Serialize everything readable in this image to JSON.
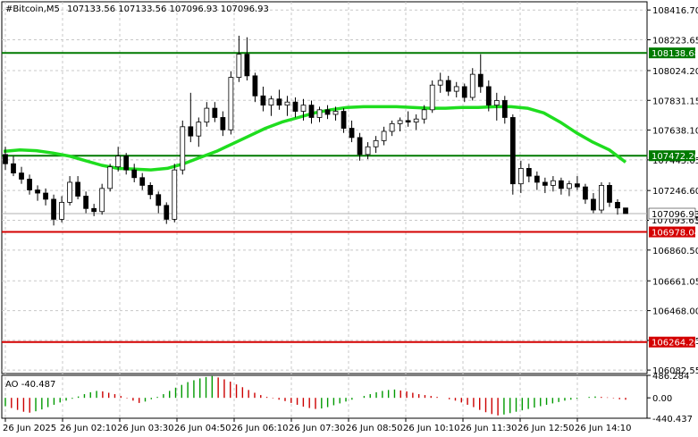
{
  "header": {
    "symbol": "#Bitcoin,M5",
    "ohlc": "107133.56 107133.56 107096.93 107096.93"
  },
  "colors": {
    "background": "#ffffff",
    "grid": "#c8c8c8",
    "candle": "#000000",
    "ma": "#1fdd1f",
    "resistance": "#007a00",
    "support": "#d40000",
    "ao_up": "#009900",
    "ao_down": "#cc0000"
  },
  "chart_data": {
    "type": "candlestick",
    "price_axis": {
      "ylim": [
        106060,
        108470
      ],
      "ticks": [
        "108416.70",
        "108223.65",
        "108024.20",
        "107831.15",
        "107638.10",
        "107445.05",
        "107246.60",
        "107053.55",
        "106860.50",
        "106661.05",
        "106468.00",
        "106274.95",
        "106082.55"
      ]
    },
    "time_axis": {
      "labels": [
        "26 Jun 2025",
        "26 Jun 02:10",
        "26 Jun 03:30",
        "26 Jun 04:50",
        "26 Jun 06:10",
        "26 Jun 07:30",
        "26 Jun 08:50",
        "26 Jun 10:10",
        "26 Jun 11:30",
        "26 Jun 12:50",
        "26 Jun 14:10"
      ]
    },
    "levels": [
      {
        "name": "resistance-upper",
        "value": 108138.68,
        "label": "108138.68",
        "color": "#007a00"
      },
      {
        "name": "resistance-lower",
        "value": 107472.2,
        "label": "107472.20",
        "color": "#007a00"
      },
      {
        "name": "support-upper",
        "value": 106978.04,
        "label": "106978.04",
        "color": "#d40000"
      },
      {
        "name": "support-lower",
        "value": 106264.26,
        "label": "106264.26",
        "color": "#d40000"
      }
    ],
    "current_price": {
      "value": 107096.93,
      "label": "107096.93"
    },
    "hidden_price": {
      "label": "107093.63"
    },
    "moving_average": [
      107500,
      107510,
      107505,
      107490,
      107470,
      107440,
      107410,
      107390,
      107385,
      107380,
      107390,
      107420,
      107460,
      107500,
      107550,
      107600,
      107650,
      107690,
      107720,
      107750,
      107770,
      107785,
      107790,
      107790,
      107790,
      107785,
      107780,
      107780,
      107785,
      107785,
      107790,
      107790,
      107780,
      107750,
      107690,
      107620,
      107560,
      107510,
      107430
    ],
    "candles": [
      {
        "o": 107480,
        "h": 107530,
        "l": 107380,
        "c": 107420
      },
      {
        "o": 107420,
        "h": 107470,
        "l": 107340,
        "c": 107360
      },
      {
        "o": 107360,
        "h": 107400,
        "l": 107290,
        "c": 107320
      },
      {
        "o": 107320,
        "h": 107350,
        "l": 107220,
        "c": 107250
      },
      {
        "o": 107250,
        "h": 107280,
        "l": 107180,
        "c": 107230
      },
      {
        "o": 107230,
        "h": 107260,
        "l": 107150,
        "c": 107190
      },
      {
        "o": 107190,
        "h": 107220,
        "l": 107020,
        "c": 107060
      },
      {
        "o": 107060,
        "h": 107210,
        "l": 107040,
        "c": 107170
      },
      {
        "o": 107170,
        "h": 107340,
        "l": 107150,
        "c": 107300
      },
      {
        "o": 107300,
        "h": 107340,
        "l": 107190,
        "c": 107210
      },
      {
        "o": 107210,
        "h": 107240,
        "l": 107100,
        "c": 107130
      },
      {
        "o": 107130,
        "h": 107160,
        "l": 107080,
        "c": 107110
      },
      {
        "o": 107110,
        "h": 107290,
        "l": 107090,
        "c": 107260
      },
      {
        "o": 107260,
        "h": 107420,
        "l": 107240,
        "c": 107400
      },
      {
        "o": 107400,
        "h": 107530,
        "l": 107370,
        "c": 107470
      },
      {
        "o": 107470,
        "h": 107490,
        "l": 107350,
        "c": 107380
      },
      {
        "o": 107380,
        "h": 107420,
        "l": 107300,
        "c": 107330
      },
      {
        "o": 107330,
        "h": 107360,
        "l": 107250,
        "c": 107280
      },
      {
        "o": 107280,
        "h": 107300,
        "l": 107190,
        "c": 107220
      },
      {
        "o": 107220,
        "h": 107240,
        "l": 107100,
        "c": 107150
      },
      {
        "o": 107150,
        "h": 107170,
        "l": 107030,
        "c": 107060
      },
      {
        "o": 107060,
        "h": 107420,
        "l": 107040,
        "c": 107380
      },
      {
        "o": 107380,
        "h": 107700,
        "l": 107350,
        "c": 107660
      },
      {
        "o": 107660,
        "h": 107880,
        "l": 107560,
        "c": 107600
      },
      {
        "o": 107600,
        "h": 107720,
        "l": 107530,
        "c": 107690
      },
      {
        "o": 107690,
        "h": 107820,
        "l": 107660,
        "c": 107780
      },
      {
        "o": 107780,
        "h": 107820,
        "l": 107690,
        "c": 107720
      },
      {
        "o": 107720,
        "h": 107760,
        "l": 107600,
        "c": 107640
      },
      {
        "o": 107640,
        "h": 108020,
        "l": 107610,
        "c": 107980
      },
      {
        "o": 107980,
        "h": 108250,
        "l": 107950,
        "c": 108130
      },
      {
        "o": 108130,
        "h": 108240,
        "l": 107960,
        "c": 107990
      },
      {
        "o": 107990,
        "h": 108010,
        "l": 107820,
        "c": 107860
      },
      {
        "o": 107860,
        "h": 107920,
        "l": 107760,
        "c": 107800
      },
      {
        "o": 107800,
        "h": 107860,
        "l": 107730,
        "c": 107840
      },
      {
        "o": 107840,
        "h": 107900,
        "l": 107770,
        "c": 107800
      },
      {
        "o": 107800,
        "h": 107860,
        "l": 107730,
        "c": 107820
      },
      {
        "o": 107820,
        "h": 107850,
        "l": 107720,
        "c": 107760
      },
      {
        "o": 107760,
        "h": 107840,
        "l": 107700,
        "c": 107800
      },
      {
        "o": 107800,
        "h": 107830,
        "l": 107680,
        "c": 107720
      },
      {
        "o": 107720,
        "h": 107790,
        "l": 107690,
        "c": 107770
      },
      {
        "o": 107770,
        "h": 107800,
        "l": 107710,
        "c": 107740
      },
      {
        "o": 107740,
        "h": 107790,
        "l": 107700,
        "c": 107760
      },
      {
        "o": 107760,
        "h": 107780,
        "l": 107620,
        "c": 107650
      },
      {
        "o": 107650,
        "h": 107700,
        "l": 107560,
        "c": 107590
      },
      {
        "o": 107590,
        "h": 107620,
        "l": 107440,
        "c": 107480
      },
      {
        "o": 107480,
        "h": 107560,
        "l": 107450,
        "c": 107530
      },
      {
        "o": 107530,
        "h": 107600,
        "l": 107490,
        "c": 107570
      },
      {
        "o": 107570,
        "h": 107660,
        "l": 107540,
        "c": 107630
      },
      {
        "o": 107630,
        "h": 107700,
        "l": 107600,
        "c": 107680
      },
      {
        "o": 107680,
        "h": 107720,
        "l": 107630,
        "c": 107700
      },
      {
        "o": 107700,
        "h": 107760,
        "l": 107660,
        "c": 107690
      },
      {
        "o": 107690,
        "h": 107740,
        "l": 107640,
        "c": 107710
      },
      {
        "o": 107710,
        "h": 107800,
        "l": 107680,
        "c": 107770
      },
      {
        "o": 107770,
        "h": 107960,
        "l": 107750,
        "c": 107930
      },
      {
        "o": 107930,
        "h": 108010,
        "l": 107880,
        "c": 107960
      },
      {
        "o": 107960,
        "h": 107990,
        "l": 107860,
        "c": 107890
      },
      {
        "o": 107890,
        "h": 107950,
        "l": 107850,
        "c": 107920
      },
      {
        "o": 107920,
        "h": 107940,
        "l": 107820,
        "c": 107850
      },
      {
        "o": 107850,
        "h": 108040,
        "l": 107830,
        "c": 108000
      },
      {
        "o": 108000,
        "h": 108130,
        "l": 107880,
        "c": 107920
      },
      {
        "o": 107920,
        "h": 107960,
        "l": 107760,
        "c": 107800
      },
      {
        "o": 107800,
        "h": 107880,
        "l": 107700,
        "c": 107830
      },
      {
        "o": 107830,
        "h": 107860,
        "l": 107680,
        "c": 107720
      },
      {
        "o": 107720,
        "h": 107740,
        "l": 107220,
        "c": 107290
      },
      {
        "o": 107290,
        "h": 107440,
        "l": 107230,
        "c": 107390
      },
      {
        "o": 107390,
        "h": 107420,
        "l": 107300,
        "c": 107340
      },
      {
        "o": 107340,
        "h": 107370,
        "l": 107250,
        "c": 107300
      },
      {
        "o": 107300,
        "h": 107330,
        "l": 107230,
        "c": 107280
      },
      {
        "o": 107280,
        "h": 107340,
        "l": 107240,
        "c": 107310
      },
      {
        "o": 107310,
        "h": 107330,
        "l": 107220,
        "c": 107260
      },
      {
        "o": 107260,
        "h": 107310,
        "l": 107210,
        "c": 107290
      },
      {
        "o": 107290,
        "h": 107340,
        "l": 107250,
        "c": 107270
      },
      {
        "o": 107270,
        "h": 107290,
        "l": 107160,
        "c": 107190
      },
      {
        "o": 107190,
        "h": 107230,
        "l": 107100,
        "c": 107120
      },
      {
        "o": 107120,
        "h": 107300,
        "l": 107100,
        "c": 107280
      },
      {
        "o": 107280,
        "h": 107300,
        "l": 107140,
        "c": 107170
      },
      {
        "o": 107170,
        "h": 107190,
        "l": 107090,
        "c": 107133.56
      },
      {
        "o": 107133.56,
        "h": 107133.56,
        "l": 107096.93,
        "c": 107096.93
      }
    ],
    "ao": {
      "label": "AO -40.487",
      "ylim": [
        -440.437,
        486.284
      ],
      "ticks": [
        "486.284",
        "0.00",
        "-440.437"
      ],
      "values": [
        -180,
        -220,
        -260,
        -300,
        -320,
        -290,
        -250,
        -200,
        -150,
        -100,
        -60,
        -20,
        30,
        80,
        120,
        150,
        140,
        110,
        80,
        40,
        -10,
        -60,
        -110,
        -80,
        -30,
        20,
        80,
        150,
        220,
        280,
        340,
        380,
        420,
        450,
        470,
        440,
        400,
        350,
        290,
        230,
        170,
        110,
        60,
        20,
        -10,
        -40,
        -70,
        -110,
        -150,
        -190,
        -220,
        -240,
        -230,
        -200,
        -160,
        -120,
        -80,
        -40,
        0,
        40,
        80,
        120,
        150,
        170,
        180,
        160,
        140,
        110,
        80,
        60,
        40,
        20,
        0,
        -30,
        -60,
        -100,
        -150,
        -200,
        -260,
        -310,
        -350,
        -380,
        -360,
        -330,
        -300,
        -270,
        -240,
        -210,
        -180,
        -150,
        -120,
        -90,
        -60,
        -40,
        -20,
        0,
        20,
        30,
        20,
        10,
        -10,
        -30,
        -40
      ]
    }
  }
}
